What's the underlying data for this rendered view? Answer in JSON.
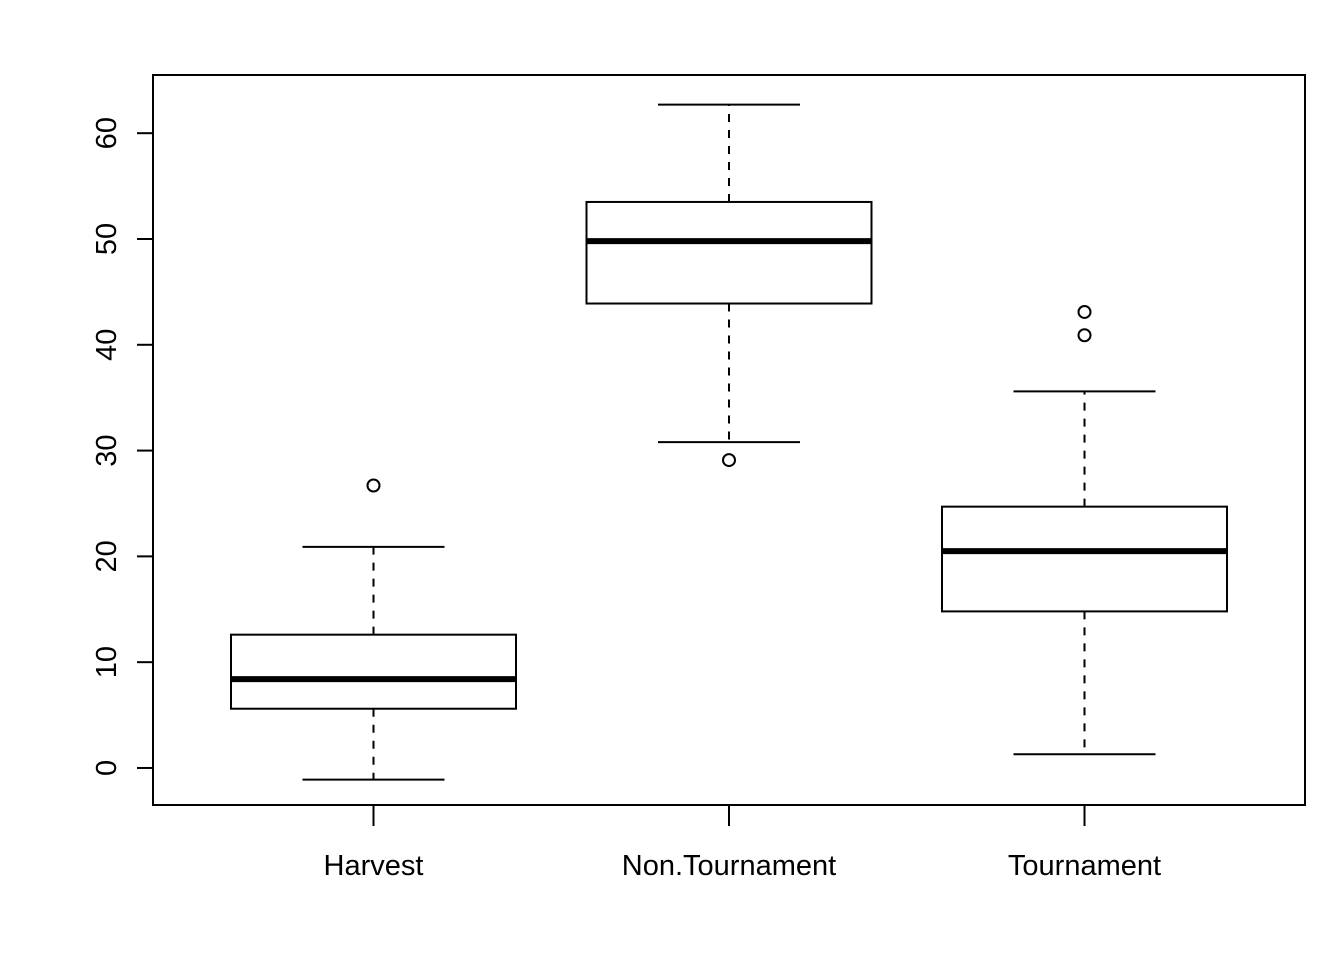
{
  "chart_data": {
    "type": "boxplot",
    "title": "",
    "xlabel": "",
    "ylabel": "",
    "ylim": [
      -3.5,
      65.5
    ],
    "yticks": [
      0,
      10,
      20,
      30,
      40,
      50,
      60
    ],
    "ytick_labels": [
      "0",
      "10",
      "20",
      "30",
      "40",
      "50",
      "60"
    ],
    "grid": false,
    "legend": "none",
    "categories": [
      "Harvest",
      "Non.Tournament",
      "Tournament"
    ],
    "series": [
      {
        "category": "Harvest",
        "whisker_low": -1.1,
        "q1": 5.6,
        "median": 8.4,
        "q3": 12.6,
        "whisker_high": 20.9,
        "outliers": [
          26.7
        ]
      },
      {
        "category": "Non.Tournament",
        "whisker_low": 30.8,
        "q1": 43.9,
        "median": 49.8,
        "q3": 53.5,
        "whisker_high": 62.7,
        "outliers": [
          29.1
        ]
      },
      {
        "category": "Tournament",
        "whisker_low": 1.3,
        "q1": 14.8,
        "median": 20.5,
        "q3": 24.7,
        "whisker_high": 35.6,
        "outliers": [
          40.9,
          43.1
        ]
      }
    ],
    "colors": {
      "line": "#000000",
      "box_fill": "#ffffff",
      "background": "#ffffff"
    }
  }
}
